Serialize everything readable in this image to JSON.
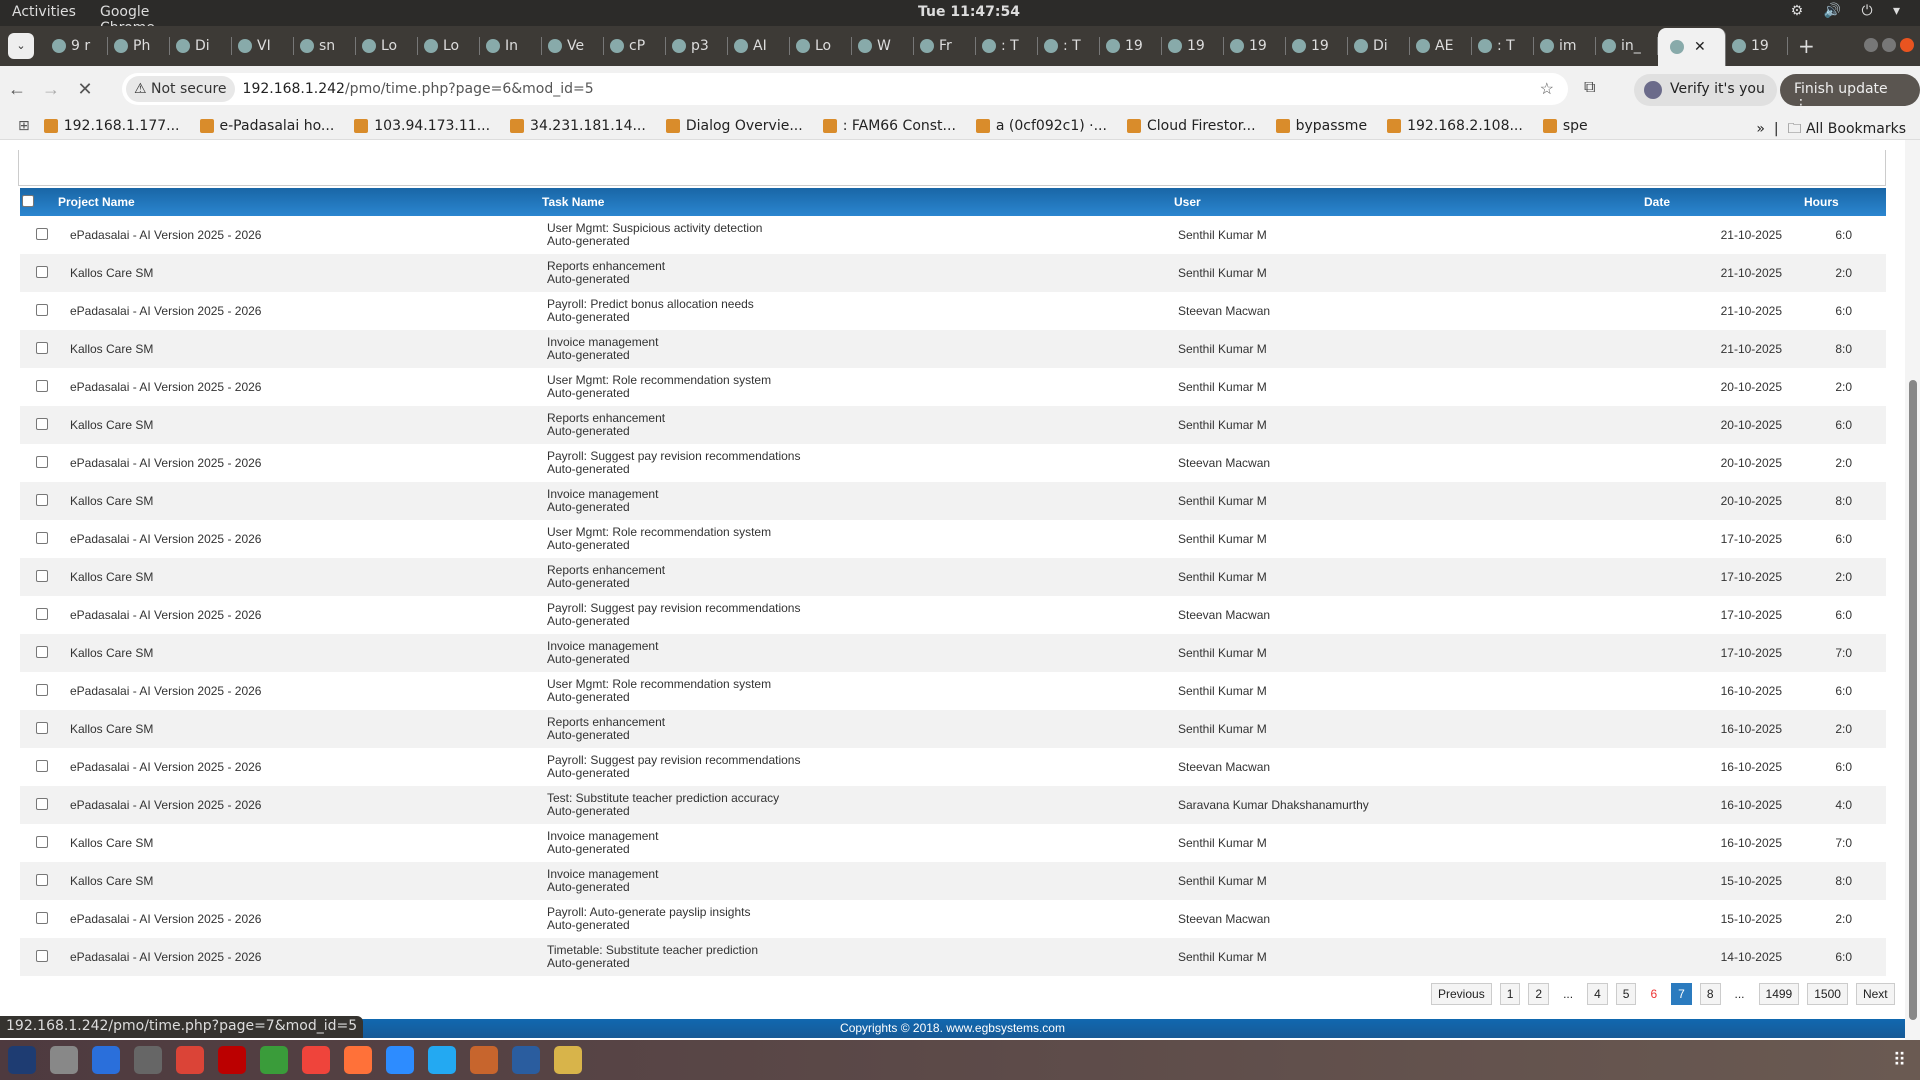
{
  "system": {
    "activities": "Activities",
    "app_name": "Google Chrome ▾",
    "clock": "Tue 11:47:54",
    "tray": "⚙ 🔊 ⏻ ▾"
  },
  "tabs": [
    "9 r",
    "Ph",
    "Di",
    "VI",
    "sn",
    "Lo",
    "Lo",
    "In",
    "Ve",
    "cP",
    "p3",
    "AI",
    "Lo",
    "W",
    "Fr",
    ": T",
    ": T",
    "19",
    "19",
    "19",
    "19",
    "Di",
    "AE",
    ": T",
    "im",
    "in_",
    "",
    "19"
  ],
  "active_tab_index": 26,
  "address": {
    "not_secure": "⚠ Not secure",
    "url_host": "192.168.1.242",
    "url_path": "/pmo/time.php?page=6&mod_id=5",
    "verify": "Verify it's you",
    "finish": "Finish update ⋮"
  },
  "bookmarks": [
    "192.168.1.177...",
    "e-Padasalai ho...",
    "103.94.173.11...",
    "34.231.181.14...",
    "Dialog Overvie...",
    ": FAM66 Const...",
    "a (0cf092c1) ·...",
    "Cloud Firestor...",
    "bypassme",
    "192.168.2.108...",
    "spe"
  ],
  "all_bookmarks": "All Bookmarks",
  "table": {
    "headers": {
      "project": "Project Name",
      "task": "Task Name",
      "user": "User",
      "date": "Date",
      "hours": "Hours"
    },
    "rows": [
      {
        "project": "ePadasalai - AI Version 2025 - 2026",
        "task": "User Mgmt: Suspicious activity detection",
        "note": "Auto-generated",
        "user": "Senthil Kumar M",
        "date": "21-10-2025",
        "hours": "6:0"
      },
      {
        "project": "Kallos Care SM",
        "task": "Reports enhancement",
        "note": "Auto-generated",
        "user": "Senthil Kumar M",
        "date": "21-10-2025",
        "hours": "2:0"
      },
      {
        "project": "ePadasalai - AI Version 2025 - 2026",
        "task": "Payroll: Predict bonus allocation needs",
        "note": "Auto-generated",
        "user": "Steevan Macwan",
        "date": "21-10-2025",
        "hours": "6:0"
      },
      {
        "project": "Kallos Care SM",
        "task": "Invoice management",
        "note": "Auto-generated",
        "user": "Senthil Kumar M",
        "date": "21-10-2025",
        "hours": "8:0"
      },
      {
        "project": "ePadasalai - AI Version 2025 - 2026",
        "task": "User Mgmt: Role recommendation system",
        "note": "Auto-generated",
        "user": "Senthil Kumar M",
        "date": "20-10-2025",
        "hours": "2:0"
      },
      {
        "project": "Kallos Care SM",
        "task": "Reports enhancement",
        "note": "Auto-generated",
        "user": "Senthil Kumar M",
        "date": "20-10-2025",
        "hours": "6:0"
      },
      {
        "project": "ePadasalai - AI Version 2025 - 2026",
        "task": "Payroll: Suggest pay revision recommendations",
        "note": "Auto-generated",
        "user": "Steevan Macwan",
        "date": "20-10-2025",
        "hours": "2:0"
      },
      {
        "project": "Kallos Care SM",
        "task": "Invoice management",
        "note": "Auto-generated",
        "user": "Senthil Kumar M",
        "date": "20-10-2025",
        "hours": "8:0"
      },
      {
        "project": "ePadasalai - AI Version 2025 - 2026",
        "task": "User Mgmt: Role recommendation system",
        "note": "Auto-generated",
        "user": "Senthil Kumar M",
        "date": "17-10-2025",
        "hours": "6:0"
      },
      {
        "project": "Kallos Care SM",
        "task": "Reports enhancement",
        "note": "Auto-generated",
        "user": "Senthil Kumar M",
        "date": "17-10-2025",
        "hours": "2:0"
      },
      {
        "project": "ePadasalai - AI Version 2025 - 2026",
        "task": "Payroll: Suggest pay revision recommendations",
        "note": "Auto-generated",
        "user": "Steevan Macwan",
        "date": "17-10-2025",
        "hours": "6:0"
      },
      {
        "project": "Kallos Care SM",
        "task": "Invoice management",
        "note": "Auto-generated",
        "user": "Senthil Kumar M",
        "date": "17-10-2025",
        "hours": "7:0"
      },
      {
        "project": "ePadasalai - AI Version 2025 - 2026",
        "task": "User Mgmt: Role recommendation system",
        "note": "Auto-generated",
        "user": "Senthil Kumar M",
        "date": "16-10-2025",
        "hours": "6:0"
      },
      {
        "project": "Kallos Care SM",
        "task": "Reports enhancement",
        "note": "Auto-generated",
        "user": "Senthil Kumar M",
        "date": "16-10-2025",
        "hours": "2:0"
      },
      {
        "project": "ePadasalai - AI Version 2025 - 2026",
        "task": "Payroll: Suggest pay revision recommendations",
        "note": "Auto-generated",
        "user": "Steevan Macwan",
        "date": "16-10-2025",
        "hours": "6:0"
      },
      {
        "project": "ePadasalai - AI Version 2025 - 2026",
        "task": "Test: Substitute teacher prediction accuracy",
        "note": "Auto-generated",
        "user": "Saravana Kumar Dhakshanamurthy",
        "date": "16-10-2025",
        "hours": "4:0"
      },
      {
        "project": "Kallos Care SM",
        "task": "Invoice management",
        "note": "Auto-generated",
        "user": "Senthil Kumar M",
        "date": "16-10-2025",
        "hours": "7:0"
      },
      {
        "project": "Kallos Care SM",
        "task": "Invoice management",
        "note": "Auto-generated",
        "user": "Senthil Kumar M",
        "date": "15-10-2025",
        "hours": "8:0"
      },
      {
        "project": "ePadasalai - AI Version 2025 - 2026",
        "task": "Payroll: Auto-generate payslip insights",
        "note": "Auto-generated",
        "user": "Steevan Macwan",
        "date": "15-10-2025",
        "hours": "2:0"
      },
      {
        "project": "ePadasalai - AI Version 2025 - 2026",
        "task": "Timetable: Substitute teacher prediction",
        "note": "Auto-generated",
        "user": "Senthil Kumar M",
        "date": "14-10-2025",
        "hours": "6:0"
      }
    ]
  },
  "pagination": [
    {
      "label": "Previous",
      "kind": "btn"
    },
    {
      "label": "1",
      "kind": "btn"
    },
    {
      "label": "2",
      "kind": "btn"
    },
    {
      "label": "...",
      "kind": "dots"
    },
    {
      "label": "4",
      "kind": "btn"
    },
    {
      "label": "5",
      "kind": "btn"
    },
    {
      "label": "6",
      "kind": "red"
    },
    {
      "label": "7",
      "kind": "cur"
    },
    {
      "label": "8",
      "kind": "btn"
    },
    {
      "label": "...",
      "kind": "dots"
    },
    {
      "label": "1499",
      "kind": "btn"
    },
    {
      "label": "1500",
      "kind": "btn"
    },
    {
      "label": "Next",
      "kind": "btn"
    }
  ],
  "footer": "Copyrights © 2018. www.egbsystems.com",
  "status_url": "192.168.1.242/pmo/time.php?page=7&mod_id=5",
  "colors": {
    "header_blue": "#1966a6",
    "current_page": "#2b7bbf",
    "prev_page": "#e33333"
  },
  "taskbar_apps": [
    "vscode-insiders",
    "files",
    "thunderbird",
    "calculator",
    "chrome",
    "filezilla",
    "calc-sheet",
    "anydesk",
    "firefox",
    "zoom",
    "vscode",
    "impress",
    "writer",
    "draw"
  ],
  "taskbar_colors": [
    "#1e3c72",
    "#888",
    "#2a6fdb",
    "#666",
    "#db4437",
    "#b00",
    "#3a9c3a",
    "#ef443b",
    "#ff7139",
    "#2d8cff",
    "#23a9f2",
    "#c7652d",
    "#2a5d9f",
    "#d8b44a"
  ]
}
